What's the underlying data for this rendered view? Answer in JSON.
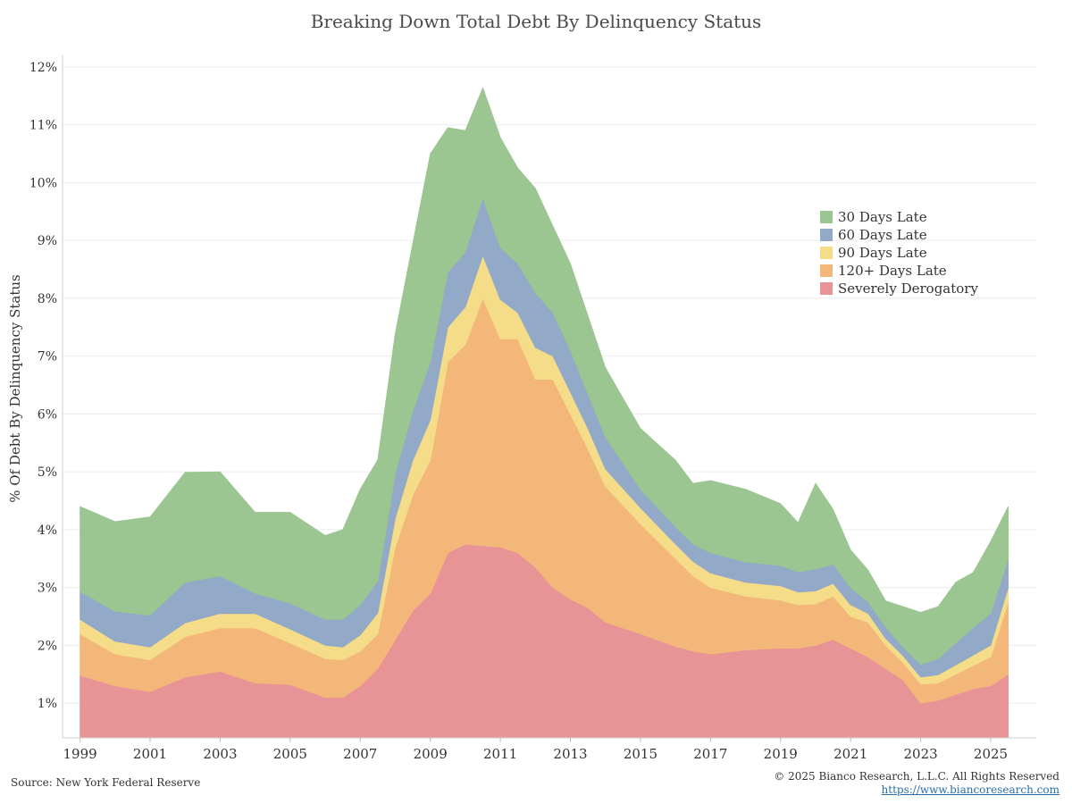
{
  "chart_data": {
    "type": "area",
    "stacked": true,
    "title": "Breaking Down Total Debt By Delinquency Status",
    "ylabel": "% Of Debt By Delinquency Status",
    "xlabel": "",
    "x_range": [
      1998.5,
      2026.3
    ],
    "ylim": [
      0.4,
      12.2
    ],
    "y_ticks": [
      1,
      2,
      3,
      4,
      5,
      6,
      7,
      8,
      9,
      10,
      11,
      12
    ],
    "y_tick_labels": [
      "1%",
      "2%",
      "3%",
      "4%",
      "5%",
      "6%",
      "7%",
      "8%",
      "9%",
      "10%",
      "11%",
      "12%"
    ],
    "x_ticks": [
      1999,
      2001,
      2003,
      2005,
      2007,
      2009,
      2011,
      2013,
      2015,
      2017,
      2019,
      2021,
      2023,
      2025
    ],
    "x_tick_labels": [
      "1999",
      "2001",
      "2003",
      "2005",
      "2007",
      "2009",
      "2011",
      "2013",
      "2015",
      "2017",
      "2019",
      "2021",
      "2023",
      "2025"
    ],
    "grid": "horizontal",
    "legend_position": "right",
    "x": [
      1999.0,
      2000.0,
      2001.0,
      2002.0,
      2003.0,
      2004.0,
      2005.0,
      2006.0,
      2006.5,
      2007.0,
      2007.5,
      2008.0,
      2008.5,
      2009.0,
      2009.5,
      2010.0,
      2010.5,
      2011.0,
      2011.5,
      2012.0,
      2012.5,
      2013.0,
      2013.5,
      2014.0,
      2015.0,
      2016.0,
      2016.5,
      2017.0,
      2018.0,
      2019.0,
      2019.5,
      2020.0,
      2020.5,
      2021.0,
      2021.5,
      2022.0,
      2022.5,
      2023.0,
      2023.5,
      2024.0,
      2024.5,
      2025.0,
      2025.5
    ],
    "series": [
      {
        "name": "Severely Derogatory",
        "color": "#e89497",
        "values": [
          1.48,
          1.3,
          1.2,
          1.45,
          1.55,
          1.35,
          1.32,
          1.1,
          1.1,
          1.3,
          1.6,
          2.1,
          2.6,
          2.9,
          3.6,
          3.75,
          3.72,
          3.7,
          3.6,
          3.35,
          3.0,
          2.8,
          2.65,
          2.4,
          2.2,
          1.98,
          1.9,
          1.85,
          1.92,
          1.95,
          1.95,
          2.0,
          2.1,
          1.95,
          1.8,
          1.6,
          1.4,
          1.0,
          1.05,
          1.15,
          1.25,
          1.3,
          1.5
        ]
      },
      {
        "name": "120+ Days Late",
        "color": "#f4b77a",
        "values": [
          0.72,
          0.55,
          0.55,
          0.7,
          0.75,
          0.95,
          0.72,
          0.67,
          0.65,
          0.6,
          0.6,
          1.6,
          2.0,
          2.3,
          3.3,
          3.45,
          4.28,
          3.6,
          3.7,
          3.25,
          3.6,
          3.2,
          2.75,
          2.35,
          1.9,
          1.52,
          1.3,
          1.15,
          0.93,
          0.83,
          0.75,
          0.72,
          0.75,
          0.55,
          0.6,
          0.4,
          0.3,
          0.33,
          0.3,
          0.35,
          0.4,
          0.5,
          1.25
        ]
      },
      {
        "name": "90 Days Late",
        "color": "#f4dc88",
        "values": [
          0.25,
          0.22,
          0.22,
          0.24,
          0.25,
          0.25,
          0.24,
          0.23,
          0.22,
          0.28,
          0.36,
          0.5,
          0.6,
          0.7,
          0.6,
          0.65,
          0.74,
          0.68,
          0.45,
          0.55,
          0.4,
          0.38,
          0.35,
          0.3,
          0.28,
          0.25,
          0.25,
          0.25,
          0.24,
          0.25,
          0.22,
          0.22,
          0.22,
          0.2,
          0.15,
          0.12,
          0.12,
          0.12,
          0.14,
          0.16,
          0.18,
          0.2,
          0.25
        ]
      },
      {
        "name": "60 Days Late",
        "color": "#92a9c7",
        "values": [
          0.48,
          0.52,
          0.55,
          0.7,
          0.65,
          0.35,
          0.45,
          0.45,
          0.48,
          0.52,
          0.55,
          0.78,
          0.85,
          1.0,
          0.95,
          0.95,
          1.0,
          0.9,
          0.85,
          0.95,
          0.75,
          0.72,
          0.6,
          0.55,
          0.32,
          0.3,
          0.3,
          0.35,
          0.35,
          0.35,
          0.35,
          0.38,
          0.33,
          0.3,
          0.2,
          0.2,
          0.15,
          0.22,
          0.28,
          0.38,
          0.48,
          0.55,
          0.5
        ]
      },
      {
        "name": "30 Days Late",
        "color": "#9bc591",
        "values": [
          1.47,
          1.55,
          1.7,
          1.9,
          1.8,
          1.4,
          1.57,
          1.45,
          1.55,
          2.0,
          2.1,
          2.42,
          2.9,
          3.6,
          2.5,
          2.1,
          1.9,
          1.9,
          1.65,
          1.8,
          1.5,
          1.5,
          1.35,
          1.2,
          1.05,
          1.15,
          1.05,
          1.25,
          1.26,
          1.07,
          0.85,
          1.48,
          0.95,
          0.65,
          0.55,
          0.45,
          0.7,
          0.9,
          0.9,
          1.05,
          0.95,
          1.25,
          0.9
        ]
      }
    ]
  },
  "footer": {
    "source": "Source: New York Federal Reserve",
    "copyright": "© 2025 Bianco Research, L.L.C. All Rights Reserved",
    "website": "https://www.biancoresearch.com"
  }
}
